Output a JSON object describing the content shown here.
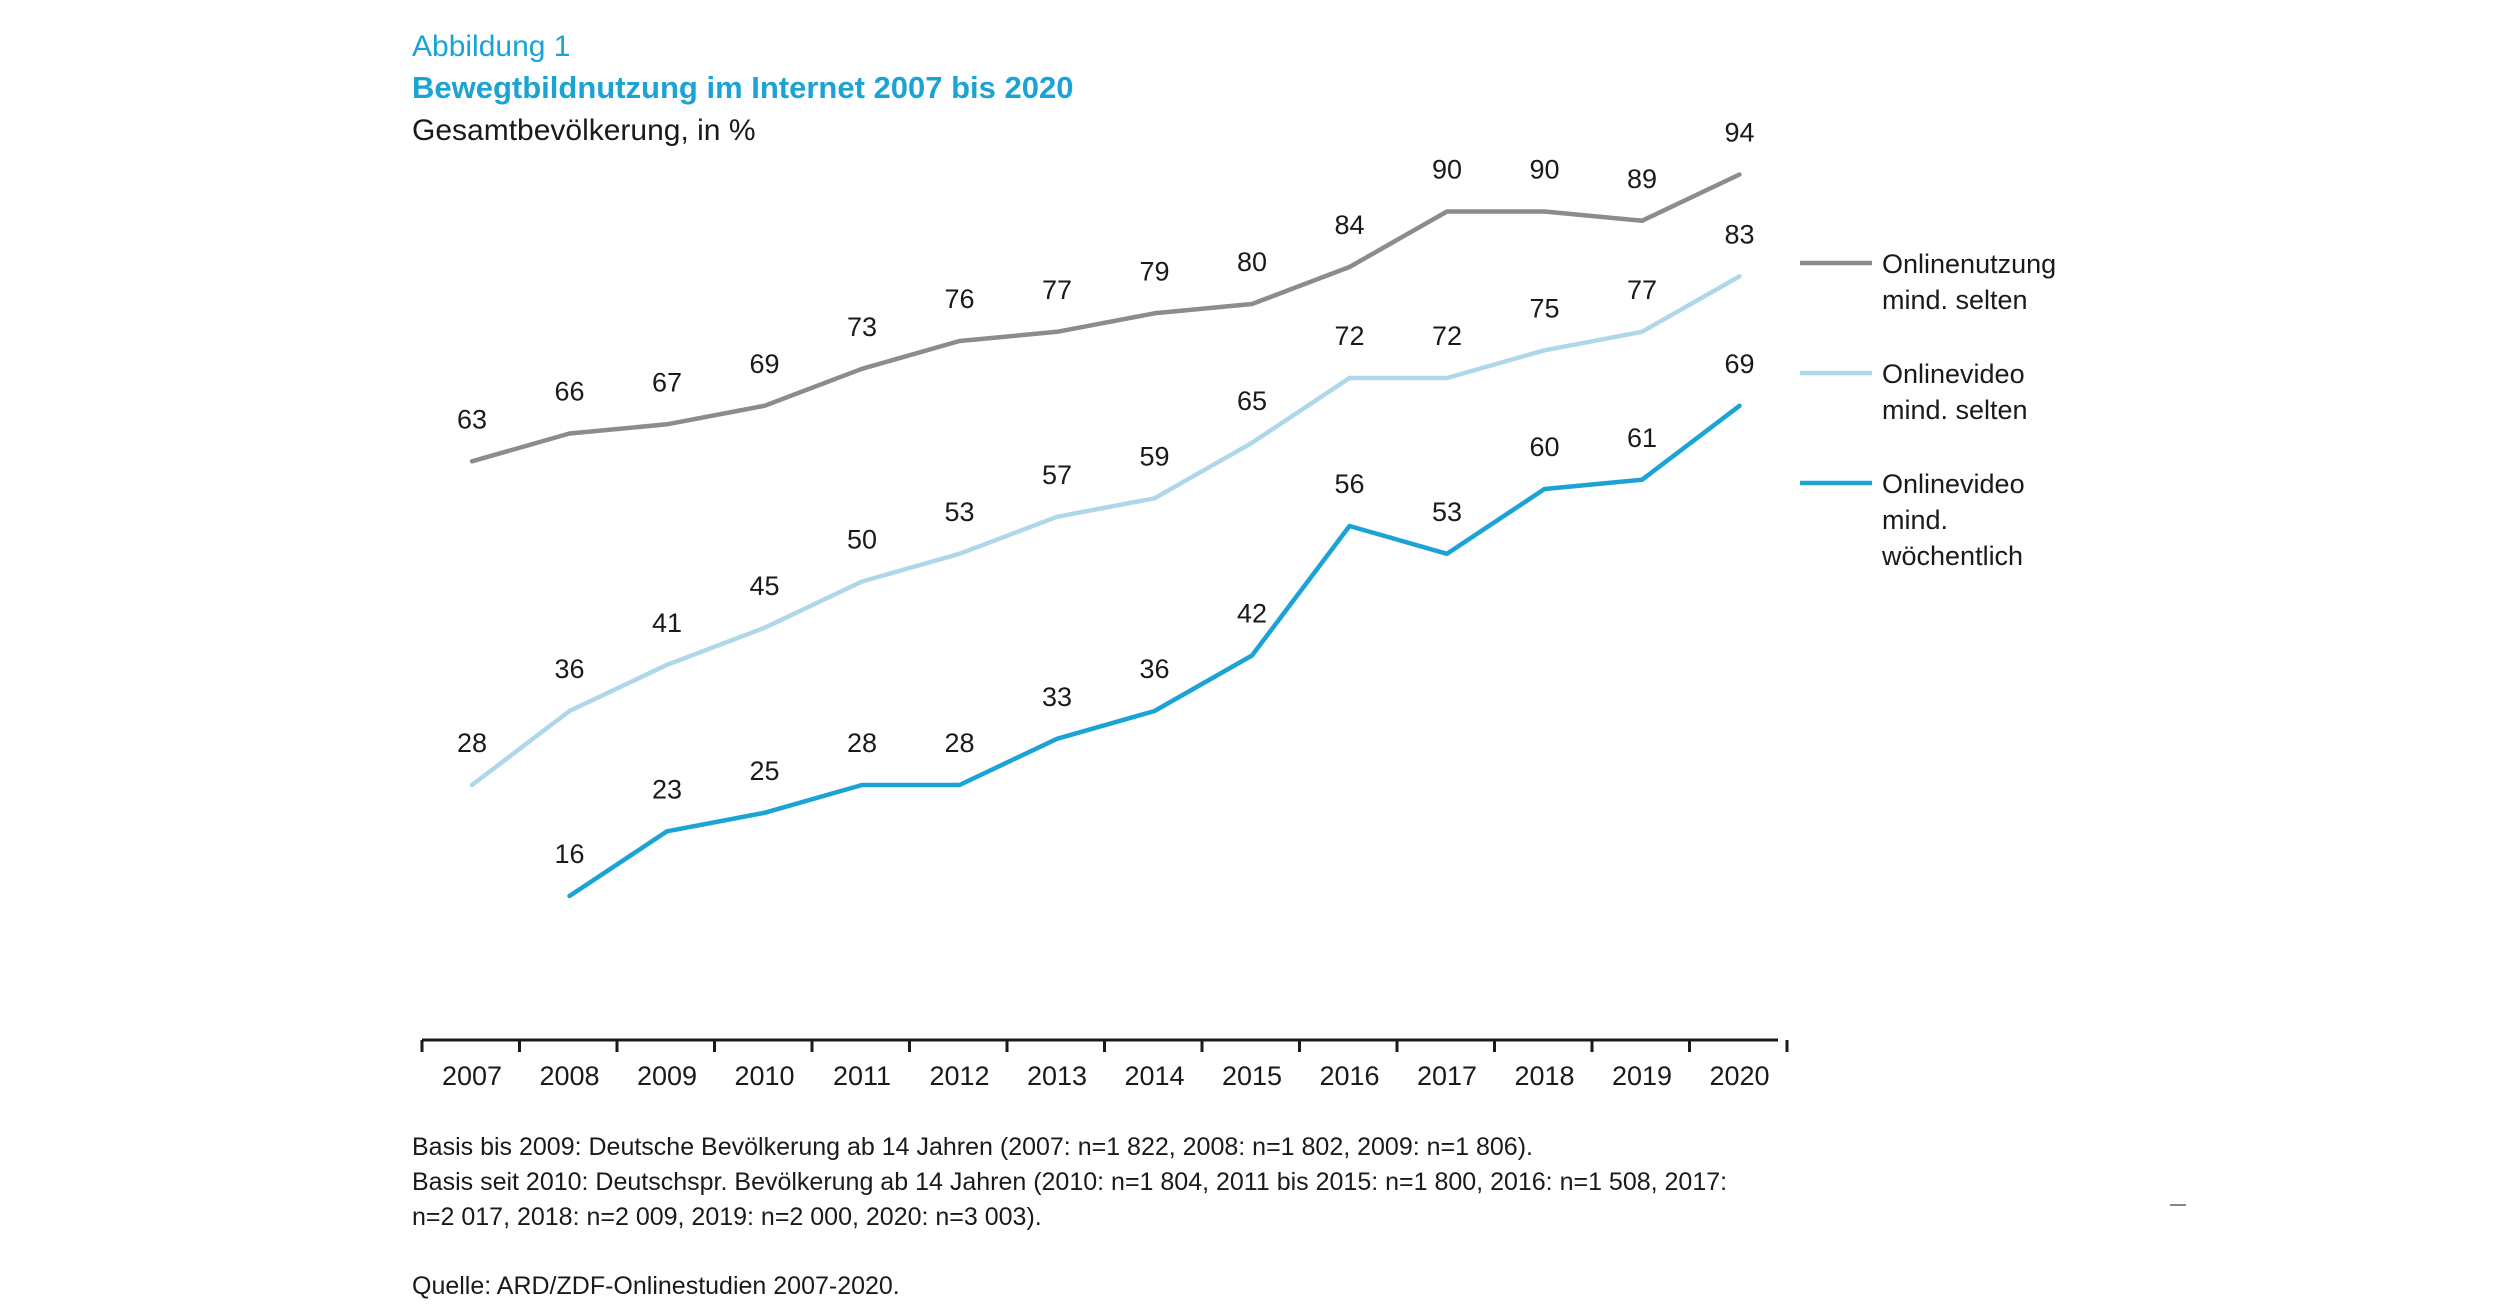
{
  "figure": {
    "kicker": "Abbildung 1",
    "title": "Bewegtbildnutzung im Internet 2007 bis 2020",
    "subtitle": "Gesamtbevölkerung, in %"
  },
  "chart_data": {
    "type": "line",
    "x": [
      "2007",
      "2008",
      "2009",
      "2010",
      "2011",
      "2012",
      "2013",
      "2014",
      "2015",
      "2016",
      "2017",
      "2018",
      "2019",
      "2020"
    ],
    "ylim": [
      0,
      100
    ],
    "grid": false,
    "legend_position": "right",
    "data_labels": true,
    "series": [
      {
        "name": "Onlinenutzung mind. selten",
        "legend_lines": [
          "Onlinenutzung",
          "mind. selten"
        ],
        "color": "#8c8c8c",
        "values": [
          63,
          66,
          67,
          69,
          73,
          76,
          77,
          79,
          80,
          84,
          90,
          90,
          89,
          94
        ]
      },
      {
        "name": "Onlinevideo mind. selten",
        "legend_lines": [
          "Onlinevideo",
          "mind. selten"
        ],
        "color": "#aed8ea",
        "values": [
          28,
          36,
          41,
          45,
          50,
          53,
          57,
          59,
          65,
          72,
          72,
          75,
          77,
          83
        ]
      },
      {
        "name": "Onlinevideo mind. wöchentlich",
        "legend_lines": [
          "Onlinevideo",
          "mind.",
          "wöchentlich"
        ],
        "color": "#1aa3d4",
        "values": [
          null,
          16,
          23,
          25,
          28,
          28,
          33,
          36,
          42,
          56,
          53,
          60,
          61,
          69
        ]
      }
    ]
  },
  "footnotes": {
    "line1": "Basis bis 2009: Deutsche Bevölkerung ab 14 Jahren (2007: n=1 822, 2008: n=1 802, 2009: n=1 806).",
    "line2": "Basis seit 2010: Deutschspr. Bevölkerung ab 14 Jahren (2010: n=1 804, 2011 bis 2015: n=1 800, 2016: n=1 508, 2017:",
    "line3": "n=2 017, 2018: n=2 009, 2019: n=2 000,  2020: n=3 003).",
    "source": "Quelle: ARD/ZDF-Onlinestudien 2007-2020."
  }
}
